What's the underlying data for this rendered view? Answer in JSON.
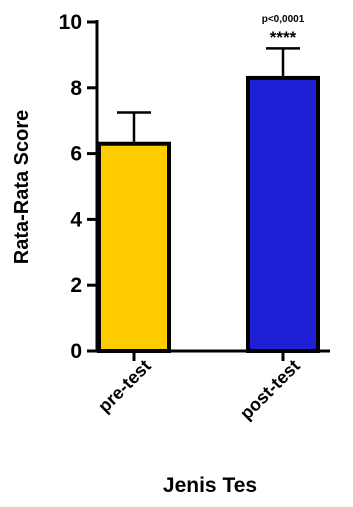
{
  "chart_data": {
    "type": "bar",
    "categories": [
      "pre-test",
      "post-test"
    ],
    "values": [
      6.3,
      8.3
    ],
    "errors": [
      0.95,
      0.9
    ],
    "colors": [
      "#FFCC00",
      "#1F1FD6"
    ],
    "edge_color": "#000000",
    "xlabel": "Jenis Tes",
    "ylabel": "Rata-Rata Score",
    "ylim": [
      0,
      10
    ],
    "yticks": [
      0,
      2,
      4,
      6,
      8,
      10
    ],
    "annotation": {
      "category": "post-test",
      "p_text": "p<0,0001",
      "stars": "****"
    },
    "grid": false
  }
}
